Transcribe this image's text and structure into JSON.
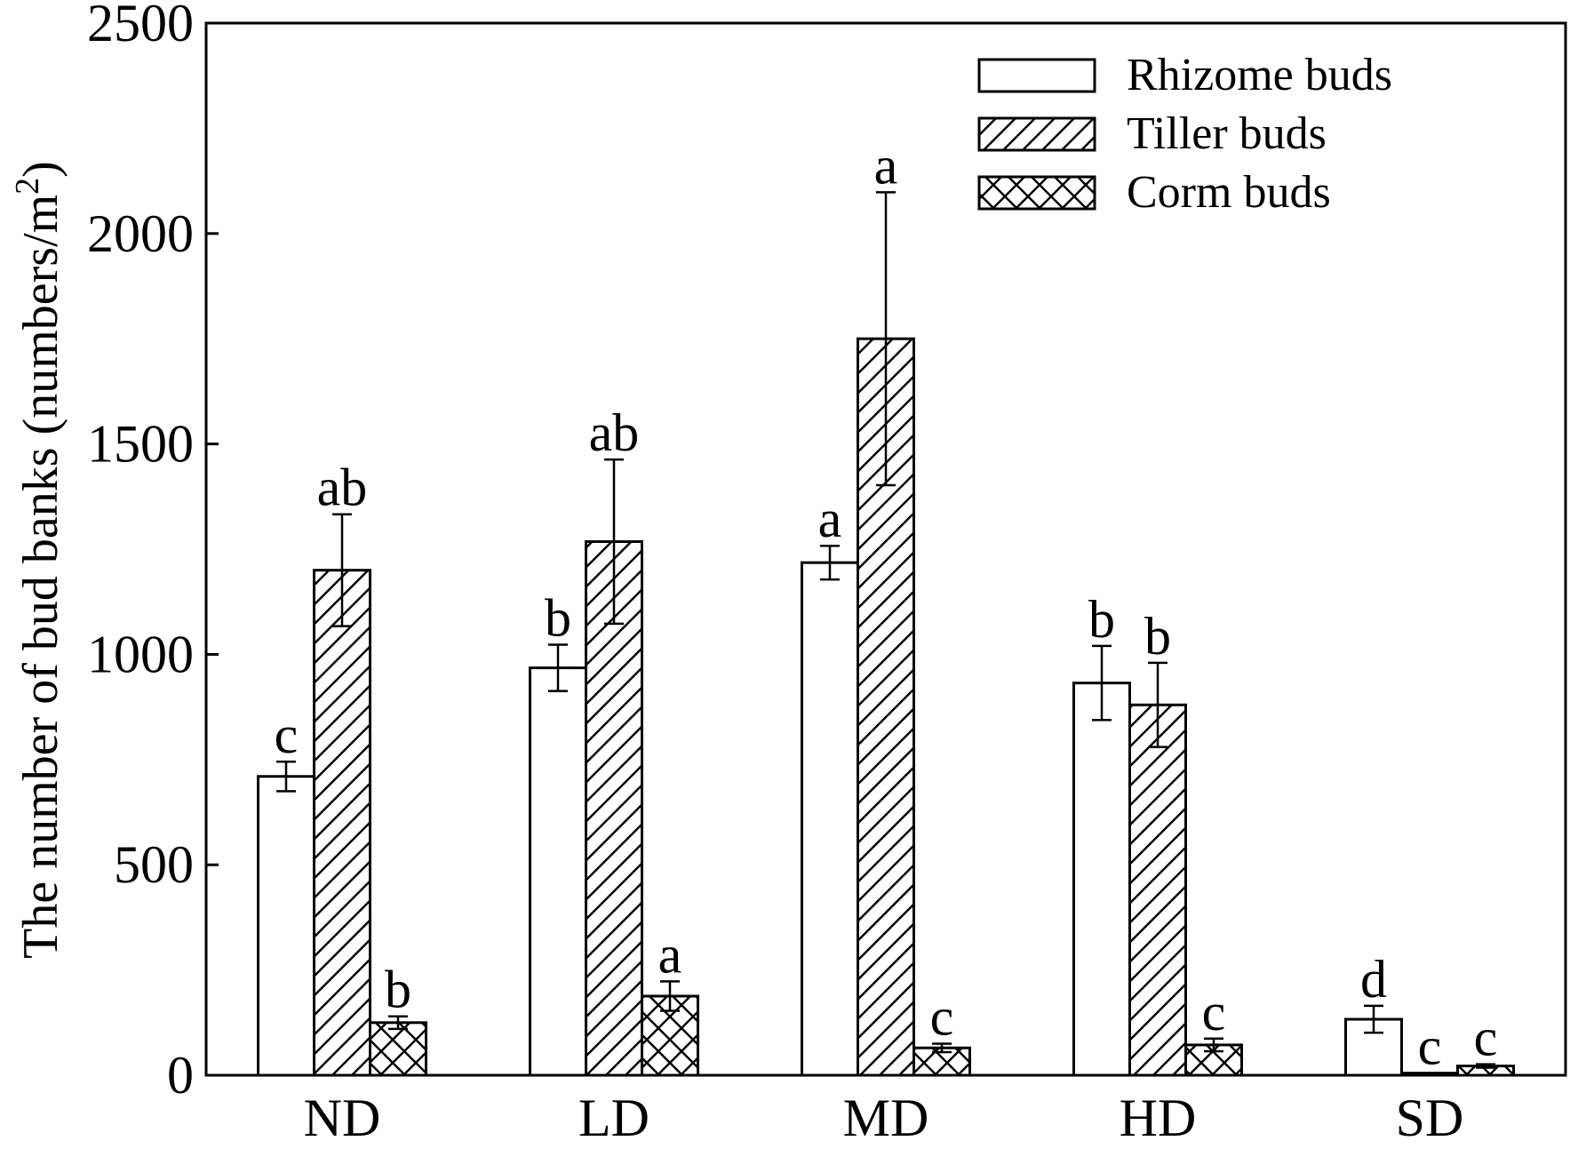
{
  "chart_data": {
    "type": "bar",
    "title": "",
    "xlabel": "",
    "ylabel": "The number of bud banks (numbers/m²)",
    "ylim": [
      0,
      2500
    ],
    "yticks": [
      0,
      500,
      1000,
      1500,
      2000,
      2500
    ],
    "grid": false,
    "legend_position": "top-right",
    "categories": [
      "ND",
      "LD",
      "MD",
      "HD",
      "SD"
    ],
    "series": [
      {
        "name": "Rhizome buds",
        "pattern": "none",
        "values": [
          710,
          968,
          1218,
          932,
          133
        ],
        "errors": [
          35,
          55,
          40,
          88,
          32
        ],
        "letters": [
          "c",
          "b",
          "a",
          "b",
          "d"
        ]
      },
      {
        "name": "Tiller buds",
        "pattern": "diagonal",
        "values": [
          1200,
          1268,
          1750,
          880,
          5
        ],
        "errors": [
          133,
          195,
          348,
          100,
          0
        ],
        "letters": [
          "ab",
          "ab",
          "a",
          "b",
          "c"
        ]
      },
      {
        "name": "Corm buds",
        "pattern": "crosshatch",
        "values": [
          125,
          188,
          65,
          72,
          22
        ],
        "errors": [
          15,
          35,
          10,
          15,
          4
        ],
        "letters": [
          "b",
          "a",
          "c",
          "c",
          "c"
        ]
      }
    ],
    "colors": {
      "fill": "#ffffff",
      "stroke": "#000000"
    }
  }
}
